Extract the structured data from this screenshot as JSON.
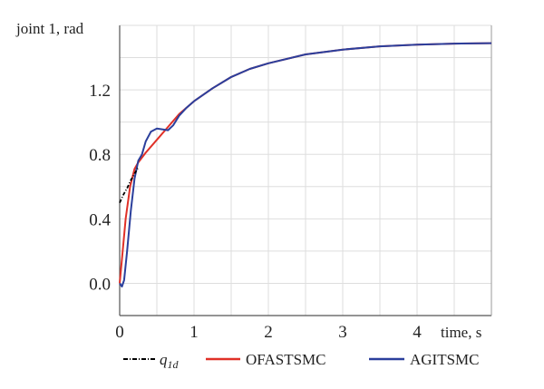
{
  "chart_data": {
    "type": "line",
    "title": "",
    "ylabel": "joint 1, rad",
    "xlabel": "time, s",
    "xlim": [
      0,
      5
    ],
    "ylim": [
      -0.2,
      1.6
    ],
    "grid": true,
    "xticks": [
      "0",
      "1",
      "2",
      "3",
      "4"
    ],
    "xtick_values": [
      0,
      1,
      2,
      3,
      4
    ],
    "yticks": [
      "0.0",
      "0.4",
      "0.8",
      "1.2"
    ],
    "ytick_values": [
      0,
      0.4,
      0.8,
      1.2
    ],
    "legend_placement": "bottom",
    "series": [
      {
        "name": "q1d",
        "label_main": "q",
        "label_sub": "1d",
        "color": "#000000",
        "style": "dashdot",
        "x": [
          0,
          0.05,
          0.1,
          0.15,
          0.2,
          0.25
        ],
        "y": [
          0.5,
          0.55,
          0.59,
          0.64,
          0.68,
          0.72
        ]
      },
      {
        "name": "OFASTSMC",
        "color": "#e03027",
        "style": "solid",
        "x": [
          0,
          0.03,
          0.08,
          0.14,
          0.2,
          0.25,
          0.35,
          0.5,
          0.65,
          0.8,
          0.9,
          1.0,
          1.25,
          1.5,
          1.75,
          2,
          2.5,
          3,
          3.5,
          4,
          4.5,
          5
        ],
        "y": [
          0,
          0.15,
          0.4,
          0.6,
          0.71,
          0.75,
          0.81,
          0.89,
          0.97,
          1.05,
          1.09,
          1.13,
          1.21,
          1.28,
          1.33,
          1.365,
          1.42,
          1.45,
          1.47,
          1.48,
          1.487,
          1.49
        ]
      },
      {
        "name": "AGITSMC",
        "color": "#2b3f9c",
        "style": "solid",
        "x": [
          0,
          0.03,
          0.06,
          0.1,
          0.15,
          0.2,
          0.25,
          0.3,
          0.35,
          0.42,
          0.5,
          0.58,
          0.65,
          0.72,
          0.8,
          0.9,
          1.0,
          1.25,
          1.5,
          1.75,
          2,
          2.5,
          3,
          3.5,
          4,
          4.5,
          5
        ],
        "y": [
          0,
          -0.02,
          0.02,
          0.2,
          0.45,
          0.65,
          0.76,
          0.8,
          0.88,
          0.94,
          0.96,
          0.955,
          0.95,
          0.98,
          1.04,
          1.09,
          1.13,
          1.21,
          1.28,
          1.33,
          1.365,
          1.42,
          1.45,
          1.47,
          1.48,
          1.487,
          1.49
        ]
      }
    ]
  }
}
